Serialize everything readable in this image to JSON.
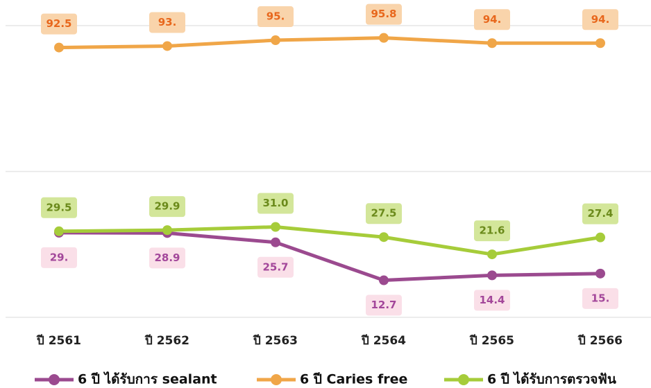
{
  "chart_data": {
    "type": "line",
    "categories": [
      "ปี 2561",
      "ปี 2562",
      "ปี 2563",
      "ปี 2564",
      "ปี 2565",
      "ปี 2566"
    ],
    "series": [
      {
        "name": "6 ปี ได้รับการ sealant",
        "color": "#9b4a8f",
        "label_bg": "#fadfe8",
        "label_color": "#a3479a",
        "label_side": "below",
        "values": [
          29,
          28.9,
          25.7,
          12.7,
          14.4,
          15
        ],
        "value_labels": [
          "29.",
          "28.9",
          "25.7",
          "12.7",
          "14.4",
          "15."
        ]
      },
      {
        "name": "6 ปี Caries free",
        "color": "#f0a648",
        "label_bg": "#f9d4ab",
        "label_color": "#e8671c",
        "label_side": "above",
        "values": [
          92.5,
          93,
          95,
          95.8,
          94,
          94
        ],
        "value_labels": [
          "92.5",
          "93.",
          "95.",
          "95.8",
          "94.",
          "94."
        ]
      },
      {
        "name": "6 ปี ได้รับการตรวจฟัน",
        "color": "#a6cc3a",
        "label_bg": "#d3e69a",
        "label_color": "#6b8a1b",
        "label_side": "above",
        "values": [
          29.5,
          29.9,
          31.0,
          27.5,
          21.6,
          27.4
        ],
        "value_labels": [
          "29.5",
          "29.9",
          "31.0",
          "27.5",
          "21.6",
          "27.4"
        ]
      }
    ],
    "ylim": [
      0,
      100
    ],
    "yticks": [
      0,
      50,
      100
    ],
    "grid": true,
    "legend": "bottom"
  }
}
